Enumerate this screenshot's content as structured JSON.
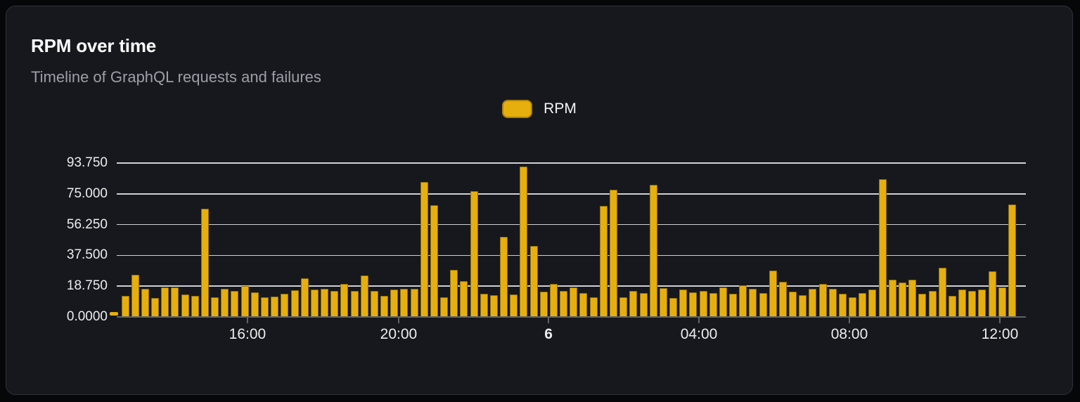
{
  "card": {
    "title": "RPM over time",
    "subtitle": "Timeline of GraphQL requests and failures"
  },
  "legend": {
    "label": "RPM"
  },
  "colors": {
    "bar": "#e7af0d",
    "accent_dash": "#e7af0d"
  },
  "chart_data": {
    "type": "bar",
    "title": "RPM over time",
    "subtitle": "Timeline of GraphQL requests and failures",
    "series_name": "RPM",
    "xlabel": "",
    "ylabel": "",
    "ylim": [
      0,
      93.75
    ],
    "grid": true,
    "legend_position": "top-center",
    "y_ticks": [
      {
        "label": "93.750",
        "value": 93.75
      },
      {
        "label": "75.000",
        "value": 75.0
      },
      {
        "label": "56.250",
        "value": 56.25
      },
      {
        "label": "37.500",
        "value": 37.5
      },
      {
        "label": "18.750",
        "value": 18.75
      },
      {
        "label": "0.0000",
        "value": 0.0
      }
    ],
    "x_ticks": [
      {
        "label": "16:00",
        "pos": 0.1438,
        "bold": false
      },
      {
        "label": "20:00",
        "pos": 0.3101,
        "bold": false
      },
      {
        "label": "6",
        "pos": 0.4749,
        "bold": true
      },
      {
        "label": "04:00",
        "pos": 0.6404,
        "bold": false
      },
      {
        "label": "08:00",
        "pos": 0.8059,
        "bold": false
      },
      {
        "label": "12:00",
        "pos": 0.9714,
        "bold": false
      }
    ],
    "values": [
      12.8,
      25.7,
      17.1,
      11.5,
      18.0,
      18.0,
      13.7,
      12.8,
      65.9,
      12.0,
      17.1,
      15.9,
      18.9,
      15.0,
      12.0,
      12.5,
      14.3,
      16.4,
      23.5,
      16.7,
      17.1,
      15.9,
      20.2,
      16.0,
      25.4,
      16.0,
      12.8,
      16.8,
      17.1,
      17.1,
      82.3,
      68.0,
      12.1,
      28.5,
      21.7,
      76.7,
      14.0,
      13.1,
      48.8,
      13.5,
      91.8,
      43.1,
      15.3,
      20.2,
      15.7,
      17.8,
      14.7,
      12.1,
      67.7,
      77.7,
      11.8,
      15.7,
      14.7,
      80.4,
      17.5,
      11.7,
      16.5,
      15.0,
      15.7,
      14.4,
      18.2,
      14.0,
      19.1,
      17.1,
      14.4,
      28.4,
      21.4,
      15.4,
      13.1,
      17.1,
      20.2,
      17.1,
      14.0,
      11.8,
      14.4,
      16.5,
      84.1,
      22.7,
      21.0,
      22.7,
      14.0,
      15.7,
      29.9,
      12.8,
      16.7,
      16.0,
      16.5,
      27.9,
      17.8,
      68.4
    ]
  }
}
